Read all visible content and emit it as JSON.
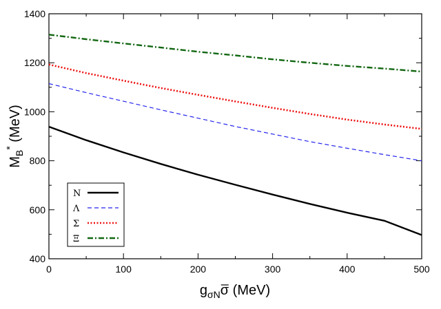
{
  "chart_data": {
    "type": "line",
    "xlim": [
      0,
      500
    ],
    "ylim": [
      400,
      1400
    ],
    "x_ticks": [
      0,
      100,
      200,
      300,
      400,
      500
    ],
    "y_ticks": [
      400,
      600,
      800,
      1000,
      1200,
      1400
    ],
    "xlabel": {
      "main": "g",
      "sub": "σN",
      "over": "σ",
      "unit": " (MeV)"
    },
    "ylabel": {
      "main": "M",
      "sub": "B",
      "sup": "*",
      "unit": " (MeV)"
    },
    "grid": false,
    "legend_position": "bottom-left",
    "series": [
      {
        "name": "N",
        "color": "#000000",
        "dash": "solid",
        "x": [
          0,
          50,
          100,
          150,
          200,
          250,
          300,
          350,
          400,
          450,
          500
        ],
        "y": [
          939,
          884,
          834,
          787,
          743,
          702,
          662,
          624,
          588,
          555,
          497
        ]
      },
      {
        "name": "Λ",
        "color": "#2222ee",
        "dash": "dashed",
        "x": [
          0,
          50,
          100,
          150,
          200,
          250,
          300,
          350,
          400,
          450,
          500
        ],
        "y": [
          1115,
          1078,
          1043,
          1008,
          974,
          940,
          909,
          878,
          851,
          825,
          800
        ]
      },
      {
        "name": "Σ",
        "color": "#ee1111",
        "dash": "dotted",
        "x": [
          0,
          50,
          100,
          150,
          200,
          250,
          300,
          350,
          400,
          450,
          500
        ],
        "y": [
          1193,
          1158,
          1127,
          1097,
          1069,
          1042,
          1016,
          991,
          968,
          948,
          930
        ]
      },
      {
        "name": "Ξ",
        "color": "#116611",
        "dash": "dashdot",
        "x": [
          0,
          50,
          100,
          150,
          200,
          250,
          300,
          350,
          400,
          450,
          500
        ],
        "y": [
          1315,
          1296,
          1279,
          1262,
          1245,
          1230,
          1214,
          1200,
          1187,
          1176,
          1164
        ]
      }
    ]
  }
}
